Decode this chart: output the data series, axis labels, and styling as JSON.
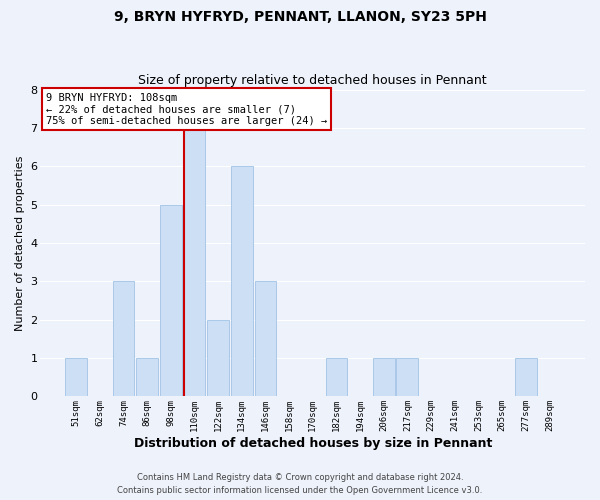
{
  "title": "9, BRYN HYFRYD, PENNANT, LLANON, SY23 5PH",
  "subtitle": "Size of property relative to detached houses in Pennant",
  "xlabel": "Distribution of detached houses by size in Pennant",
  "ylabel": "Number of detached properties",
  "bar_color": "#ccdff5",
  "bar_edge_color": "#aac8e8",
  "background_color": "#eef2fb",
  "grid_color": "#ffffff",
  "bin_labels": [
    "51sqm",
    "62sqm",
    "74sqm",
    "86sqm",
    "98sqm",
    "110sqm",
    "122sqm",
    "134sqm",
    "146sqm",
    "158sqm",
    "170sqm",
    "182sqm",
    "194sqm",
    "206sqm",
    "217sqm",
    "229sqm",
    "241sqm",
    "253sqm",
    "265sqm",
    "277sqm",
    "289sqm"
  ],
  "bar_heights": [
    1,
    0,
    3,
    1,
    5,
    7,
    2,
    6,
    3,
    0,
    0,
    1,
    0,
    1,
    1,
    0,
    0,
    0,
    0,
    1,
    0
  ],
  "ylim": [
    0,
    8
  ],
  "yticks": [
    0,
    1,
    2,
    3,
    4,
    5,
    6,
    7,
    8
  ],
  "red_line_bin_index": 5,
  "annotation_title": "9 BRYN HYFRYD: 108sqm",
  "annotation_line1": "← 22% of detached houses are smaller (7)",
  "annotation_line2": "75% of semi-detached houses are larger (24) →",
  "annotation_box_color": "#ffffff",
  "annotation_box_edge": "#cc0000",
  "red_line_color": "#cc0000",
  "footer1": "Contains HM Land Registry data © Crown copyright and database right 2024.",
  "footer2": "Contains public sector information licensed under the Open Government Licence v3.0."
}
